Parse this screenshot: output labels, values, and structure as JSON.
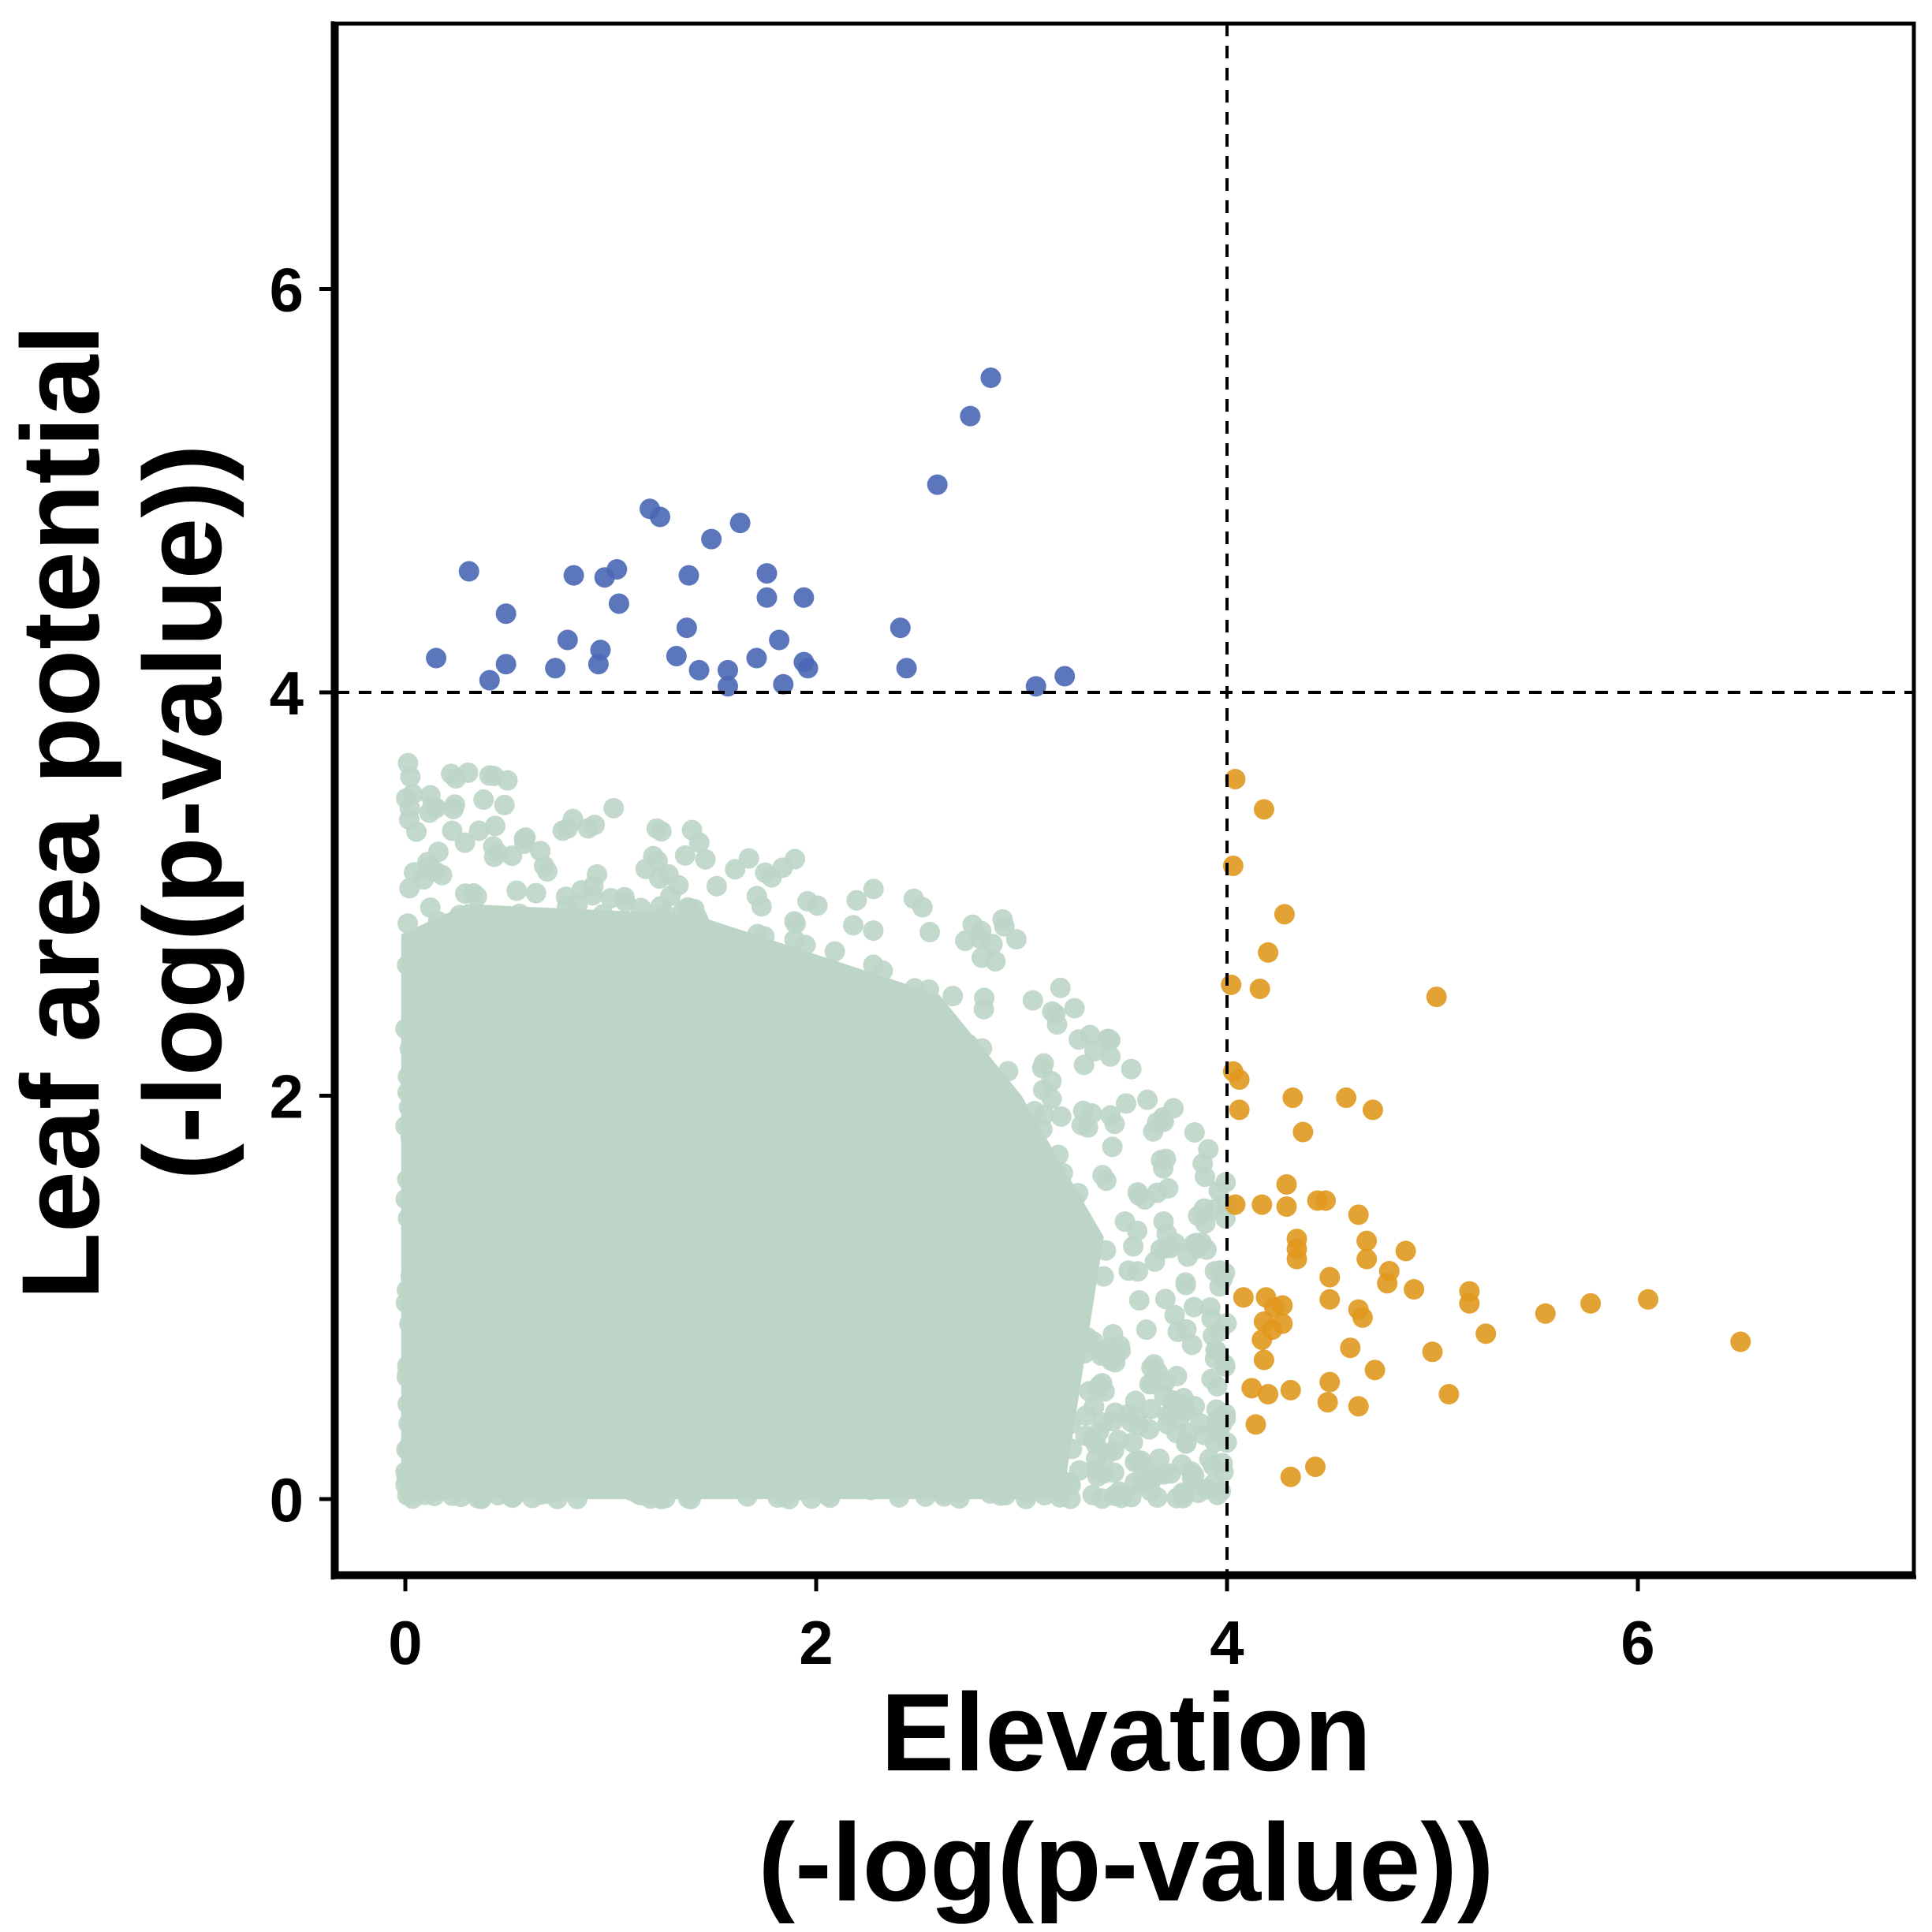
{
  "chart_data": {
    "type": "scatter",
    "xlabel": [
      "Elevation",
      "(-log(p-value))"
    ],
    "ylabel": [
      "Leaf area potential",
      "(-log(p-value))"
    ],
    "xlim": [
      -0.35,
      7.35
    ],
    "ylim": [
      -0.3,
      7.3
    ],
    "xticks": [
      "0",
      "2",
      "4",
      "6"
    ],
    "yticks": [
      "0",
      "2",
      "4",
      "6"
    ],
    "thresholds": {
      "x": 4,
      "y": 4
    },
    "grid": false,
    "legend": "none",
    "colors": {
      "background_points": "#bdd5c6",
      "leaf_area_outliers": "#4a67b5",
      "elevation_outliers": "#e0981e"
    },
    "series": [
      {
        "values": [
          [
            0.15,
            4.17
          ],
          [
            0.31,
            4.6
          ],
          [
            0.41,
            4.06
          ],
          [
            0.49,
            4.14
          ],
          [
            0.49,
            4.39
          ],
          [
            0.73,
            4.12
          ],
          [
            0.79,
            4.26
          ],
          [
            0.82,
            4.58
          ],
          [
            0.94,
            4.14
          ],
          [
            0.95,
            4.21
          ],
          [
            0.97,
            4.57
          ],
          [
            1.03,
            4.61
          ],
          [
            1.04,
            4.44
          ],
          [
            1.19,
            4.91
          ],
          [
            1.24,
            4.87
          ],
          [
            1.32,
            4.18
          ],
          [
            1.37,
            4.32
          ],
          [
            1.38,
            4.58
          ],
          [
            1.43,
            4.11
          ],
          [
            1.49,
            4.76
          ],
          [
            1.57,
            4.11
          ],
          [
            1.57,
            4.03
          ],
          [
            1.63,
            4.84
          ],
          [
            1.71,
            4.17
          ],
          [
            1.76,
            4.59
          ],
          [
            1.76,
            4.47
          ],
          [
            1.82,
            4.26
          ],
          [
            1.84,
            4.04
          ],
          [
            1.94,
            4.47
          ],
          [
            1.94,
            4.15
          ],
          [
            1.96,
            4.12
          ],
          [
            2.41,
            4.32
          ],
          [
            2.44,
            4.12
          ],
          [
            2.59,
            5.03
          ],
          [
            2.75,
            5.37
          ],
          [
            2.85,
            5.56
          ],
          [
            3.07,
            4.03
          ],
          [
            3.21,
            4.08
          ]
        ]
      },
      {
        "values": [
          [
            4.04,
            3.57
          ],
          [
            4.18,
            3.42
          ],
          [
            4.03,
            3.14
          ],
          [
            4.28,
            2.9
          ],
          [
            4.2,
            2.71
          ],
          [
            4.02,
            2.55
          ],
          [
            4.16,
            2.53
          ],
          [
            5.02,
            2.49
          ],
          [
            4.03,
            2.12
          ],
          [
            4.06,
            2.08
          ],
          [
            4.06,
            1.93
          ],
          [
            4.32,
            1.99
          ],
          [
            4.58,
            1.99
          ],
          [
            4.71,
            1.93
          ],
          [
            4.37,
            1.82
          ],
          [
            4.29,
            1.56
          ],
          [
            4.04,
            1.46
          ],
          [
            4.17,
            1.46
          ],
          [
            4.29,
            1.45
          ],
          [
            4.44,
            1.48
          ],
          [
            4.48,
            1.48
          ],
          [
            4.64,
            1.41
          ],
          [
            4.34,
            1.29
          ],
          [
            4.34,
            1.24
          ],
          [
            4.68,
            1.28
          ],
          [
            4.34,
            1.19
          ],
          [
            4.68,
            1.19
          ],
          [
            4.87,
            1.23
          ],
          [
            4.79,
            1.13
          ],
          [
            4.5,
            1.1
          ],
          [
            4.78,
            1.07
          ],
          [
            4.91,
            1.04
          ],
          [
            4.08,
            1.0
          ],
          [
            4.19,
            1.0
          ],
          [
            4.23,
            0.95
          ],
          [
            4.27,
            0.96
          ],
          [
            4.5,
            0.99
          ],
          [
            4.64,
            0.94
          ],
          [
            4.66,
            0.9
          ],
          [
            5.18,
            1.03
          ],
          [
            5.18,
            0.97
          ],
          [
            5.55,
            0.92
          ],
          [
            5.77,
            0.97
          ],
          [
            6.05,
            0.99
          ],
          [
            4.18,
            0.88
          ],
          [
            4.27,
            0.87
          ],
          [
            4.22,
            0.84
          ],
          [
            4.17,
            0.79
          ],
          [
            4.6,
            0.75
          ],
          [
            4.18,
            0.69
          ],
          [
            5.26,
            0.82
          ],
          [
            5.0,
            0.73
          ],
          [
            4.72,
            0.64
          ],
          [
            6.5,
            0.78
          ],
          [
            4.5,
            0.58
          ],
          [
            4.12,
            0.55
          ],
          [
            4.2,
            0.52
          ],
          [
            4.31,
            0.54
          ],
          [
            4.49,
            0.48
          ],
          [
            4.64,
            0.46
          ],
          [
            5.08,
            0.52
          ],
          [
            4.14,
            0.37
          ],
          [
            4.31,
            0.11
          ],
          [
            4.43,
            0.16
          ]
        ]
      }
    ]
  }
}
